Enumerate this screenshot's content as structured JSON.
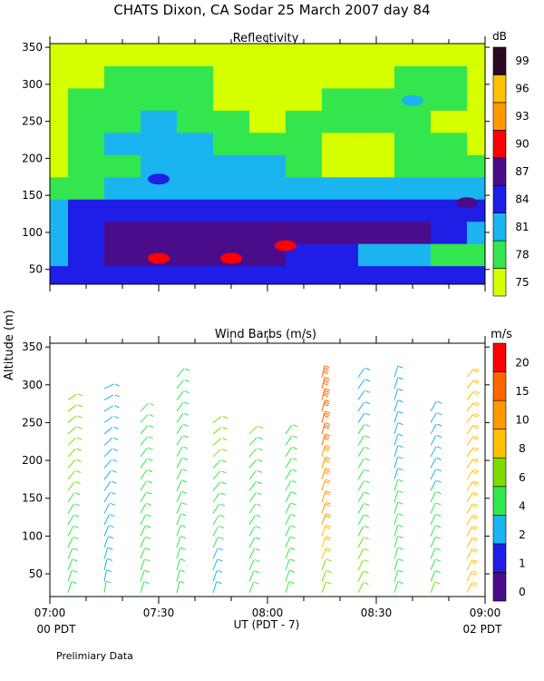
{
  "title": "CHATS Dixon, CA   Sodar   25 March 2007   day  84",
  "y_axis_shared_label": "Altitude (m)",
  "x_axis_label": "UT  (PDT - 7)",
  "footnote": "Prelimiary Data",
  "pdt_left": "00 PDT",
  "pdt_right": "02 PDT",
  "chart_data": [
    {
      "type": "heatmap",
      "title": "Reflectivity",
      "colorbar_unit": "dB",
      "x_range": [
        "07:00",
        "09:00"
      ],
      "y_ticks": [
        50,
        100,
        150,
        200,
        250,
        300,
        350
      ],
      "ylim": [
        30,
        355
      ],
      "colorbar": {
        "levels": [
          75,
          78,
          81,
          84,
          87,
          90,
          93,
          96,
          99
        ],
        "colors": [
          "#d6ff00",
          "#33e64d",
          "#1ab4f0",
          "#1e1ee6",
          "#4b0c8c",
          "#ff0000",
          "#ff9900",
          "#ffc000",
          "#2a0a22"
        ]
      },
      "x_times": [
        "07:00",
        "07:10",
        "07:20",
        "07:30",
        "07:40",
        "07:50",
        "08:00",
        "08:10",
        "08:20",
        "08:30",
        "08:40",
        "08:50",
        "09:00"
      ],
      "y_altitudes": [
        40,
        70,
        100,
        130,
        160,
        190,
        220,
        250,
        280,
        310,
        340
      ],
      "z_level_index": [
        [
          3,
          3,
          3,
          3,
          3,
          3,
          3,
          3,
          3,
          3,
          3,
          3,
          3
        ],
        [
          2,
          3,
          4,
          4,
          4,
          4,
          4,
          3,
          3,
          2,
          2,
          1,
          1
        ],
        [
          2,
          3,
          4,
          4,
          4,
          4,
          4,
          4,
          4,
          4,
          4,
          3,
          2
        ],
        [
          2,
          3,
          3,
          3,
          3,
          3,
          3,
          3,
          3,
          3,
          3,
          3,
          3
        ],
        [
          1,
          1,
          2,
          2,
          2,
          2,
          2,
          2,
          2,
          2,
          2,
          2,
          2
        ],
        [
          0,
          1,
          1,
          2,
          2,
          2,
          2,
          1,
          0,
          0,
          1,
          1,
          1
        ],
        [
          0,
          1,
          2,
          2,
          2,
          1,
          1,
          1,
          0,
          0,
          1,
          1,
          0
        ],
        [
          0,
          1,
          1,
          2,
          1,
          1,
          0,
          1,
          1,
          1,
          1,
          0,
          0
        ],
        [
          0,
          1,
          1,
          1,
          1,
          0,
          0,
          0,
          1,
          1,
          1,
          1,
          0
        ],
        [
          0,
          0,
          1,
          1,
          1,
          0,
          0,
          0,
          0,
          0,
          1,
          1,
          0
        ],
        [
          0,
          0,
          0,
          0,
          0,
          0,
          0,
          0,
          0,
          0,
          0,
          0,
          0
        ]
      ],
      "peaks": [
        {
          "time": "07:30",
          "altitude": 65,
          "level_index": 5
        },
        {
          "time": "07:50",
          "altitude": 65,
          "level_index": 5
        },
        {
          "time": "08:05",
          "altitude": 82,
          "level_index": 5
        },
        {
          "time": "07:30",
          "altitude": 172,
          "level_index": 3
        },
        {
          "time": "08:40",
          "altitude": 278,
          "level_index": 2
        },
        {
          "time": "08:55",
          "altitude": 140,
          "level_index": 4
        }
      ]
    },
    {
      "type": "scatter",
      "title": "Wind Barbs (m/s)",
      "colorbar_unit": "m/s",
      "x_ticks": [
        "07:00",
        "07:30",
        "08:00",
        "08:30",
        "09:00"
      ],
      "y_ticks": [
        50,
        100,
        150,
        200,
        250,
        300,
        350
      ],
      "ylim": [
        20,
        355
      ],
      "colorbar": {
        "levels": [
          0,
          1,
          2,
          4,
          6,
          8,
          10,
          15,
          20
        ],
        "colors": [
          "#4b0c8c",
          "#1e1ee6",
          "#1ab4f0",
          "#33e64d",
          "#7fdc00",
          "#ffc000",
          "#ff9900",
          "#ff6600",
          "#ff0000"
        ]
      },
      "profile_times": [
        "07:05",
        "07:15",
        "07:25",
        "07:35",
        "07:45",
        "07:55",
        "08:05",
        "08:15",
        "08:25",
        "08:35",
        "08:45",
        "08:55"
      ],
      "profiles": [
        {
          "time": "07:05",
          "top": 280,
          "speed_low": 5,
          "speed_high": 7,
          "dir_low": 200,
          "dir_high": 240
        },
        {
          "time": "07:15",
          "top": 305,
          "speed_low": 4,
          "speed_high": 2,
          "dir_low": 190,
          "dir_high": 250
        },
        {
          "time": "07:25",
          "top": 278,
          "speed_low": 5,
          "speed_high": 4,
          "dir_low": 200,
          "dir_high": 230
        },
        {
          "time": "07:35",
          "top": 320,
          "speed_low": 5,
          "speed_high": 6,
          "dir_low": 195,
          "dir_high": 225
        },
        {
          "time": "07:45",
          "top": 260,
          "speed_low": 3,
          "speed_high": 7,
          "dir_low": 200,
          "dir_high": 240
        },
        {
          "time": "07:55",
          "top": 235,
          "speed_low": 5,
          "speed_high": 6,
          "dir_low": 205,
          "dir_high": 230
        },
        {
          "time": "08:05",
          "top": 240,
          "speed_low": 5,
          "speed_high": 4,
          "dir_low": 200,
          "dir_high": 220
        },
        {
          "time": "08:15",
          "top": 320,
          "speed_low": 6,
          "speed_high": 20,
          "dir_low": 205,
          "dir_high": 195
        },
        {
          "time": "08:25",
          "top": 318,
          "speed_low": 7,
          "speed_high": 3,
          "dir_low": 210,
          "dir_high": 220
        },
        {
          "time": "08:35",
          "top": 315,
          "speed_low": 5,
          "speed_high": 3,
          "dir_low": 200,
          "dir_high": 200
        },
        {
          "time": "08:45",
          "top": 270,
          "speed_low": 6,
          "speed_high": 2,
          "dir_low": 205,
          "dir_high": 215
        },
        {
          "time": "08:55",
          "top": 320,
          "speed_low": 8,
          "speed_high": 10,
          "dir_low": 210,
          "dir_high": 225
        }
      ]
    }
  ]
}
